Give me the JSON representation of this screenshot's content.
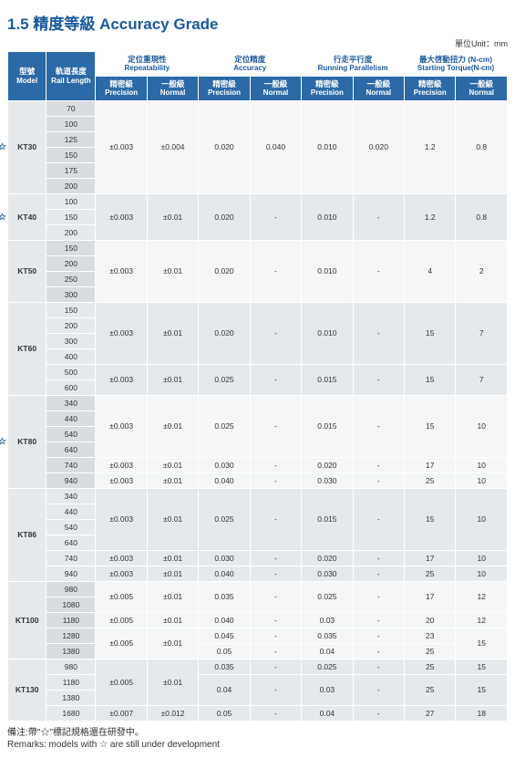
{
  "title": "1.5   精度等級 Accuracy Grade",
  "unit_label": "單位Unit：mm",
  "headers": {
    "model_cn": "型號",
    "model_en": "Model",
    "rail_cn": "軌道長度",
    "rail_en": "Rail Length",
    "repeat_cn": "定位重現性",
    "repeat_en": "Repeatability",
    "accuracy_cn": "定位精度",
    "accuracy_en": "Accuracy",
    "parallel_cn": "行走平行度",
    "parallel_en": "Running Parallelism",
    "torque_cn": "最大啓動扭力 (N-cm)",
    "torque_en": "Starting Torque(N-cm)",
    "precision_cn": "精密級",
    "precision_en": "Precision",
    "normal_cn": "一般級",
    "normal_en": "Normal"
  },
  "rows": [
    {
      "model": "KT30",
      "star": true,
      "rails": [
        "70",
        "100",
        "125",
        "150",
        "175",
        "200"
      ],
      "groups": [
        {
          "span": 6,
          "repeat_p": "±0.003",
          "repeat_n": "±0.004",
          "acc_p": "0.020",
          "acc_n": "0.040",
          "par_p": "0.010",
          "par_n": "0.020",
          "tor_p": "1.2",
          "tor_n": "0.8"
        }
      ]
    },
    {
      "model": "KT40",
      "star": true,
      "rails": [
        "100",
        "150",
        "200"
      ],
      "groups": [
        {
          "span": 3,
          "repeat_p": "±0.003",
          "repeat_n": "±0.01",
          "acc_p": "0.020",
          "acc_n": "-",
          "par_p": "0.010",
          "par_n": "-",
          "tor_p": "1.2",
          "tor_n": "0.8"
        }
      ]
    },
    {
      "model": "KT50",
      "rails": [
        "150",
        "200",
        "250",
        "300"
      ],
      "groups": [
        {
          "span": 4,
          "repeat_p": "±0.003",
          "repeat_n": "±0.01",
          "acc_p": "0.020",
          "acc_n": "-",
          "par_p": "0.010",
          "par_n": "-",
          "tor_p": "4",
          "tor_n": "2"
        }
      ]
    },
    {
      "model": "KT60",
      "rails": [
        "150",
        "200",
        "300",
        "400",
        "500",
        "600"
      ],
      "groups": [
        {
          "span": 4,
          "repeat_p": "±0.003",
          "repeat_n": "±0.01",
          "acc_p": "0.020",
          "acc_n": "-",
          "par_p": "0.010",
          "par_n": "-",
          "tor_p": "15",
          "tor_n": "7"
        },
        {
          "span": 2,
          "repeat_p": "±0.003",
          "repeat_n": "±0.01",
          "acc_p": "0.025",
          "acc_n": "-",
          "par_p": "0.015",
          "par_n": "-",
          "tor_p": "15",
          "tor_n": "7"
        }
      ]
    },
    {
      "model": "KT80",
      "star": true,
      "rails": [
        "340",
        "440",
        "540",
        "640",
        "740",
        "940"
      ],
      "groups": [
        {
          "span": 4,
          "repeat_p": "±0.003",
          "repeat_n": "±0.01",
          "acc_p": "0.025",
          "acc_n": "-",
          "par_p": "0.015",
          "par_n": "-",
          "tor_p": "15",
          "tor_n": "10"
        },
        {
          "span": 1,
          "repeat_p": "±0.003",
          "repeat_n": "±0.01",
          "acc_p": "0.030",
          "acc_n": "-",
          "par_p": "0.020",
          "par_n": "-",
          "tor_p": "17",
          "tor_n": "10"
        },
        {
          "span": 1,
          "repeat_p": "±0.003",
          "repeat_n": "±0.01",
          "acc_p": "0.040",
          "acc_n": "-",
          "par_p": "0.030",
          "par_n": "-",
          "tor_p": "25",
          "tor_n": "10"
        }
      ]
    },
    {
      "model": "KT86",
      "rails": [
        "340",
        "440",
        "540",
        "640",
        "740",
        "940"
      ],
      "groups": [
        {
          "span": 4,
          "repeat_p": "±0.003",
          "repeat_n": "±0.01",
          "acc_p": "0.025",
          "acc_n": "-",
          "par_p": "0.015",
          "par_n": "-",
          "tor_p": "15",
          "tor_n": "10"
        },
        {
          "span": 1,
          "repeat_p": "±0.003",
          "repeat_n": "±0.01",
          "acc_p": "0.030",
          "acc_n": "-",
          "par_p": "0.020",
          "par_n": "-",
          "tor_p": "17",
          "tor_n": "10"
        },
        {
          "span": 1,
          "repeat_p": "±0.003",
          "repeat_n": "±0.01",
          "acc_p": "0.040",
          "acc_n": "-",
          "par_p": "0.030",
          "par_n": "-",
          "tor_p": "25",
          "tor_n": "10"
        }
      ]
    },
    {
      "model": "KT100",
      "rails": [
        "980",
        "1080",
        "1180",
        "1280",
        "1380"
      ],
      "groups": [
        {
          "span": 2,
          "repeat_p": "±0.005",
          "repeat_n": "±0.01",
          "acc_p": "0.035",
          "acc_n": "-",
          "par_p": "0.025",
          "par_n": "-",
          "tor_p": "17",
          "tor_n": "12"
        },
        {
          "span": 1,
          "repeat_p": "±0.005",
          "repeat_n": "±0.01",
          "acc_p": "0.040",
          "acc_n": "-",
          "par_p": "0.03",
          "par_n": "-",
          "tor_p": "20",
          "tor_n": "12"
        },
        {
          "span": 1,
          "repeat_p": "±0.005",
          "repeat_n": "±0.01",
          "acc_p": "0.045",
          "acc_n": "-",
          "par_p": "0.035",
          "par_n": "-",
          "tor_p": "23",
          "tor_n": "15",
          "share_rn": true
        },
        {
          "span": 1,
          "repeat_p": "",
          "repeat_n": "",
          "acc_p": "0.05",
          "acc_n": "-",
          "par_p": "0.04",
          "par_n": "-",
          "tor_p": "25",
          "tor_n": ""
        }
      ]
    },
    {
      "model": "KT130",
      "rails": [
        "980",
        "1180",
        "1380",
        "1680"
      ],
      "groups": [
        {
          "span": 1,
          "repeat_p": "±0.005",
          "repeat_n": "±0.01",
          "acc_p": "0.035",
          "acc_n": "-",
          "par_p": "0.025",
          "par_n": "-",
          "tor_p": "25",
          "tor_n": "15",
          "share_rn3": true
        },
        {
          "span": 2,
          "repeat_p": "",
          "repeat_n": "",
          "acc_p": "0.04",
          "acc_n": "-",
          "par_p": "0.03",
          "par_n": "-",
          "tor_p": "25",
          "tor_n": "15"
        },
        {
          "span": 1,
          "repeat_p": "±0.007",
          "repeat_n": "±0.012",
          "acc_p": "0.05",
          "acc_n": "-",
          "par_p": "0.04",
          "par_n": "-",
          "tor_p": "27",
          "tor_n": "18"
        }
      ]
    }
  ],
  "remarks_cn": "備注:帶\"☆\"標記規格還在研發中。",
  "remarks_en": "Remarks: models with ☆ are still under development"
}
